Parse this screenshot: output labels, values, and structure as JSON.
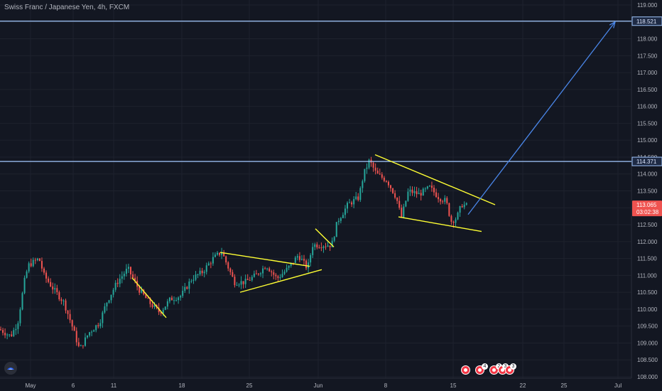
{
  "header": {
    "symbol_title": "Swiss Franc / Japanese Yen, 4h, FXCM"
  },
  "colors": {
    "background": "#131722",
    "grid": "#1e222d",
    "axis_text": "#b2b5be",
    "up_candle": "#26a69a",
    "down_candle": "#ef5350",
    "horizontal_line": "#a3c8ff",
    "trendlines": "#ffff33",
    "arrow": "#4a86e8",
    "last_price_badge": "#ef5350"
  },
  "chart_data": {
    "type": "candlestick",
    "title": "Swiss Franc / Japanese Yen, 4h, FXCM",
    "x_tick_labels": [
      "May",
      "6",
      "11",
      "18",
      "25",
      "Jun",
      "8",
      "15",
      "22",
      "25",
      "Jul"
    ],
    "y_tick_labels": [
      "108.000",
      "108.500",
      "109.000",
      "109.500",
      "110.000",
      "110.500",
      "111.000",
      "111.500",
      "112.000",
      "112.500",
      "113.000",
      "113.500",
      "114.000",
      "114.500",
      "115.000",
      "115.500",
      "116.000",
      "116.500",
      "117.000",
      "117.500",
      "118.000",
      "118.500",
      "119.000"
    ],
    "ylim": [
      107.9,
      119.2
    ],
    "grid": true,
    "price_waypoints": [
      [
        0,
        109.4
      ],
      [
        15,
        109.2
      ],
      [
        25,
        109.6
      ],
      [
        35,
        110.9
      ],
      [
        40,
        111.3
      ],
      [
        55,
        111.5
      ],
      [
        62,
        111.0
      ],
      [
        75,
        110.6
      ],
      [
        90,
        110.2
      ],
      [
        100,
        109.6
      ],
      [
        112,
        108.8
      ],
      [
        125,
        109.3
      ],
      [
        140,
        109.6
      ],
      [
        150,
        110.2
      ],
      [
        165,
        110.8
      ],
      [
        180,
        111.2
      ],
      [
        195,
        110.6
      ],
      [
        210,
        110.2
      ],
      [
        225,
        109.9
      ],
      [
        240,
        110.3
      ],
      [
        255,
        110.4
      ],
      [
        270,
        110.9
      ],
      [
        285,
        111.1
      ],
      [
        300,
        111.5
      ],
      [
        312,
        111.7
      ],
      [
        320,
        111.3
      ],
      [
        330,
        110.8
      ],
      [
        345,
        110.8
      ],
      [
        360,
        111.0
      ],
      [
        375,
        111.3
      ],
      [
        390,
        110.9
      ],
      [
        405,
        111.2
      ],
      [
        420,
        111.6
      ],
      [
        433,
        111.2
      ],
      [
        440,
        111.9
      ],
      [
        455,
        111.9
      ],
      [
        467,
        111.9
      ],
      [
        475,
        112.6
      ],
      [
        490,
        113.1
      ],
      [
        505,
        113.3
      ],
      [
        512,
        114.0
      ],
      [
        520,
        114.4
      ],
      [
        530,
        114.0
      ],
      [
        545,
        113.8
      ],
      [
        558,
        113.3
      ],
      [
        565,
        112.7
      ],
      [
        575,
        113.5
      ],
      [
        590,
        113.4
      ],
      [
        605,
        113.6
      ],
      [
        618,
        113.3
      ],
      [
        628,
        113.2
      ],
      [
        635,
        112.6
      ],
      [
        643,
        112.7
      ],
      [
        650,
        113.1
      ],
      [
        657,
        113.06
      ]
    ],
    "horizontal_lines": [
      {
        "price": 118.521,
        "label": "118.521"
      },
      {
        "price": 114.371,
        "label": "114.371"
      }
    ],
    "last_price": {
      "value": 113.065,
      "label": "113.065",
      "countdown": "03:02:38"
    },
    "trendlines": [
      {
        "a": [
          186,
          110.93
        ],
        "b": [
          234,
          109.75
        ]
      },
      {
        "a": [
          310,
          111.68
        ],
        "b": [
          436,
          111.27
        ]
      },
      {
        "a": [
          338,
          110.5
        ],
        "b": [
          453,
          111.17
        ]
      },
      {
        "a": [
          444,
          112.38
        ],
        "b": [
          470,
          111.84
        ]
      },
      {
        "a": [
          528,
          114.57
        ],
        "b": [
          697,
          113.09
        ]
      },
      {
        "a": [
          561,
          112.73
        ],
        "b": [
          678,
          112.3
        ]
      }
    ],
    "arrow": {
      "from": [
        659,
        112.8
      ],
      "to": [
        866,
        118.5
      ]
    },
    "event_count_labels": [
      "4",
      "2",
      "3",
      "3"
    ]
  }
}
